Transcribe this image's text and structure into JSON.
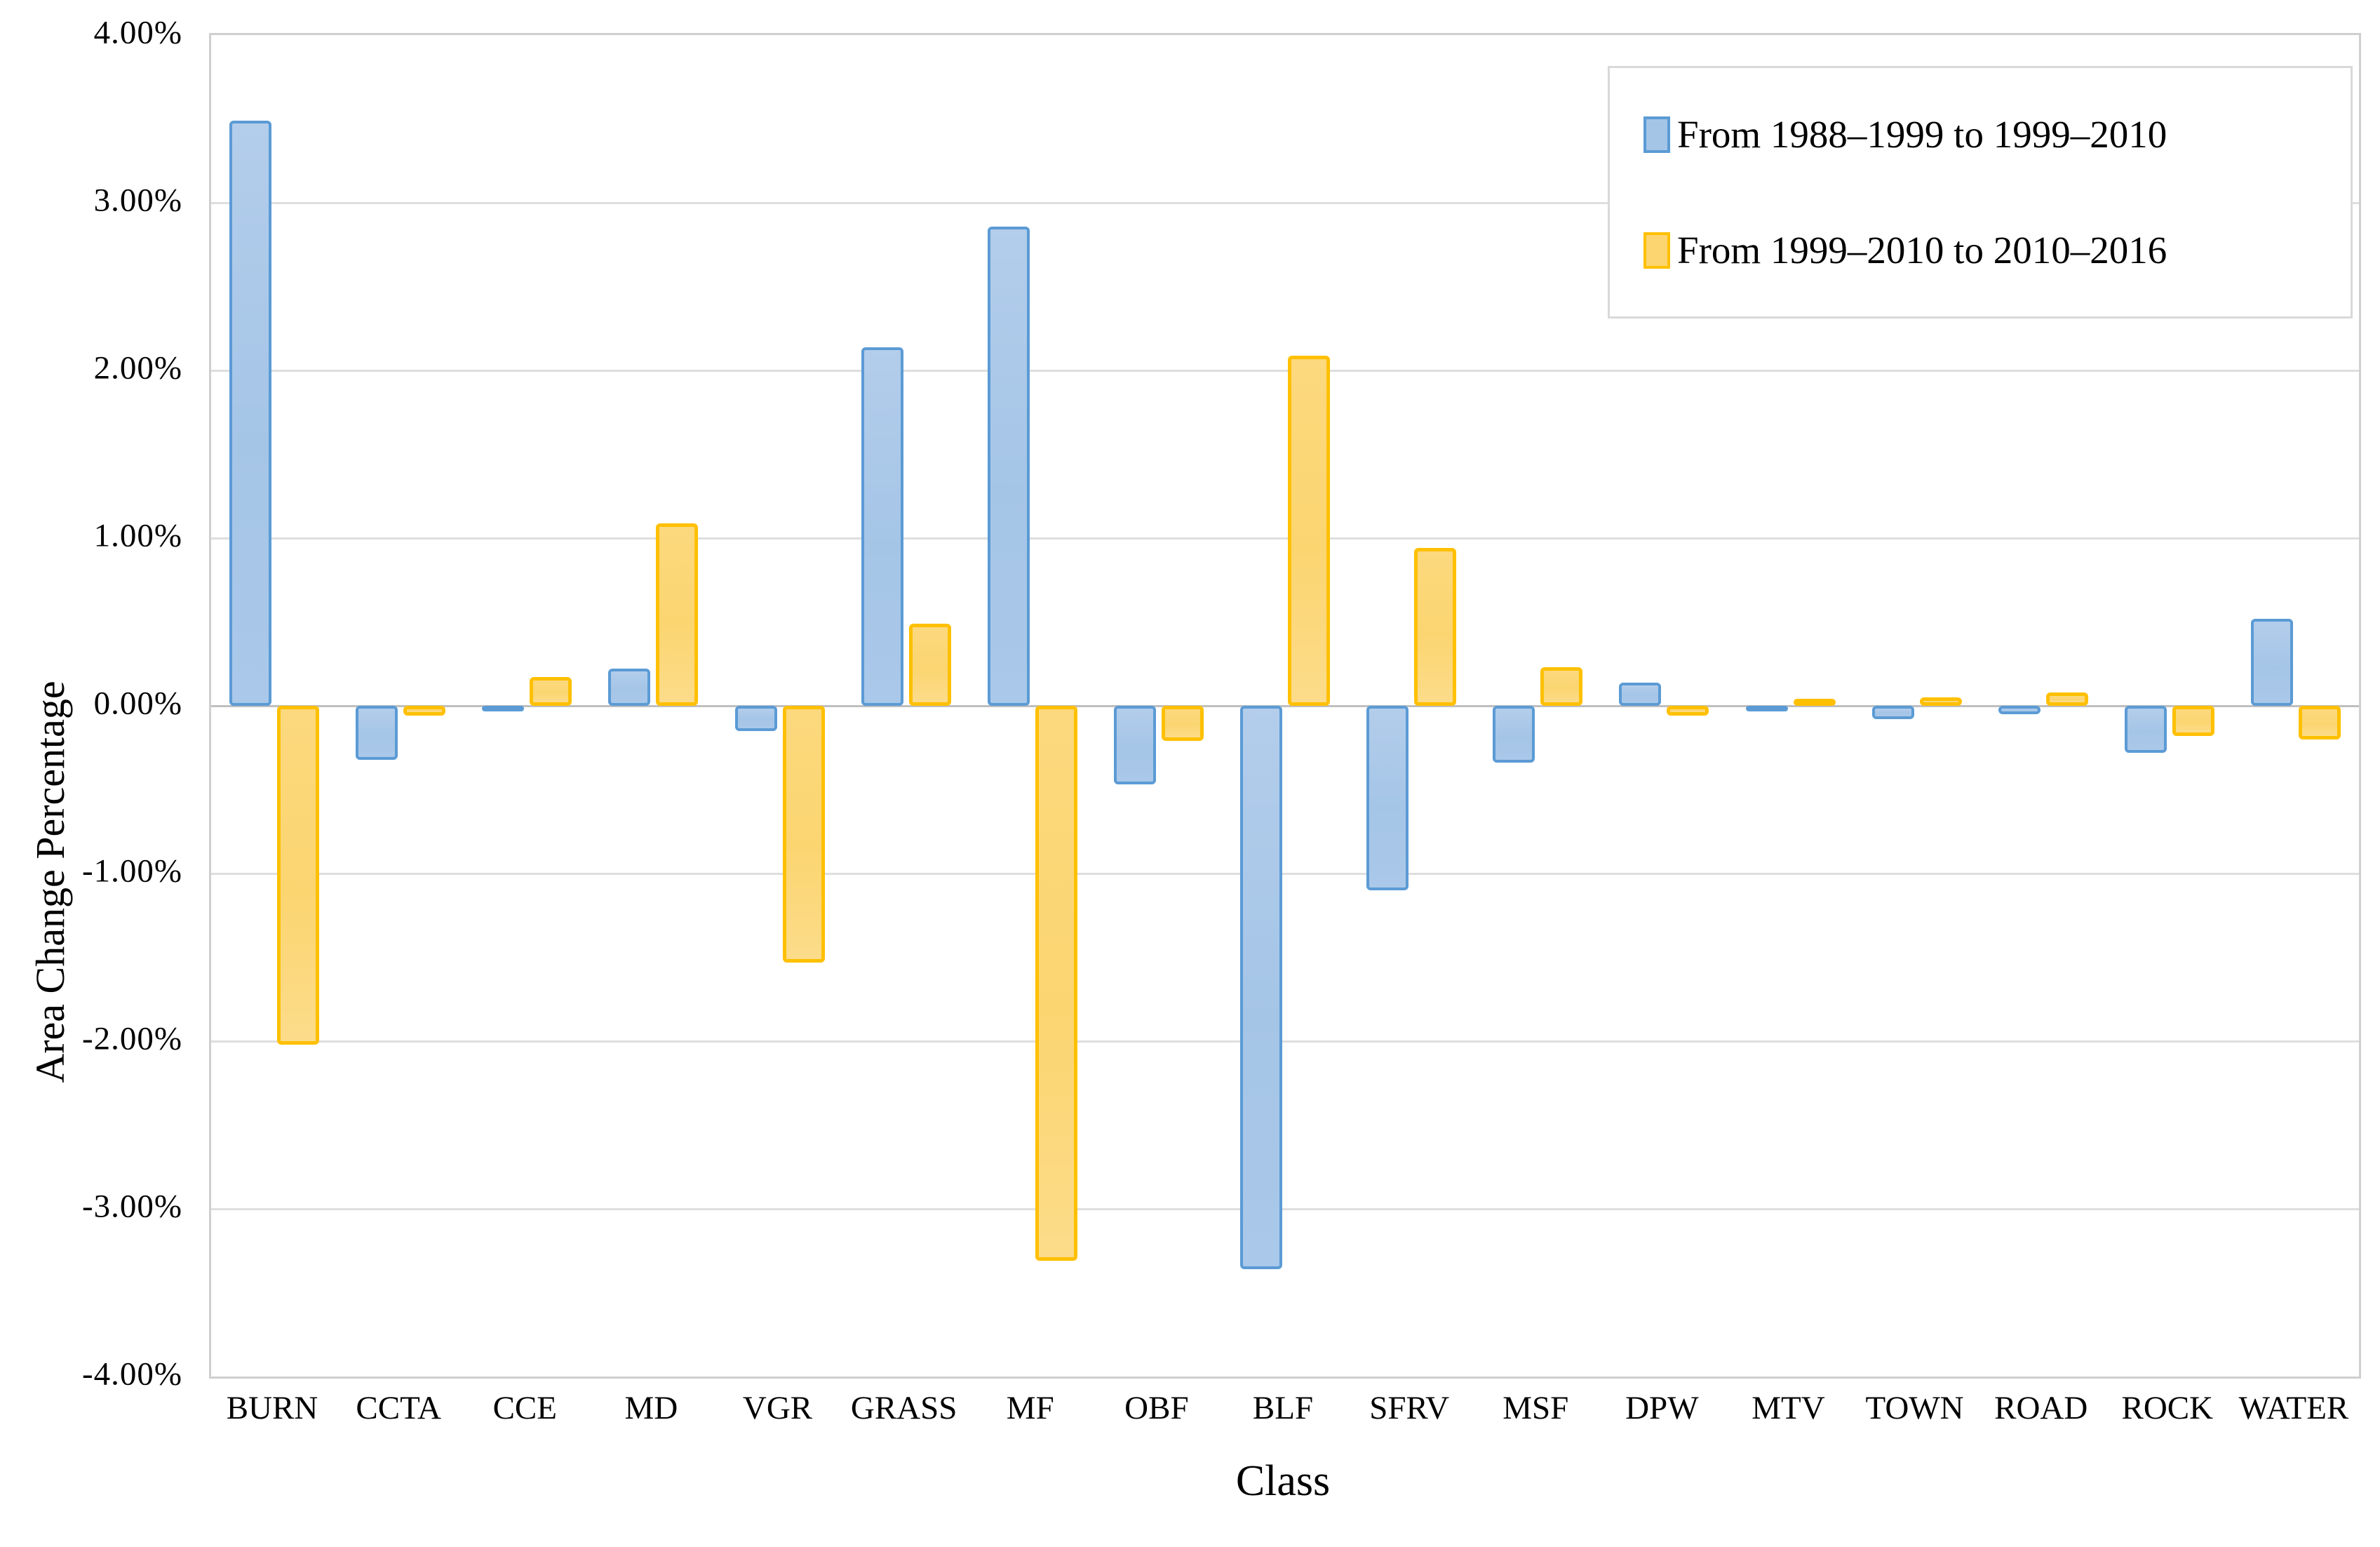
{
  "axes": {
    "y_tick_labels": [
      "4.00%",
      "3.00%",
      "2.00%",
      "1.00%",
      "0.00%",
      "-1.00%",
      "-2.00%",
      "-3.00%",
      "-4.00%"
    ],
    "y_tick_values": [
      4,
      3,
      2,
      1,
      0,
      -1,
      -2,
      -3,
      -4
    ]
  },
  "legend": {
    "entries": [
      {
        "label": "From 1988–1999 to 1999–2010",
        "swatch_fill": "#A5C5E7",
        "swatch_border": "#5B9BD5"
      },
      {
        "label": "From 1999–2010 to 2010–2016",
        "swatch_fill": "#FCD570",
        "swatch_border": "#FFC000"
      }
    ]
  },
  "chart_data": {
    "type": "bar",
    "title": "",
    "xlabel": "Class",
    "ylabel": "Area Change Percentage",
    "ylim": [
      -4,
      4
    ],
    "y_tick_step_percent": 1,
    "grid": "horizontal-only",
    "legend_position": "top-right-inside",
    "value_format": "percent",
    "categories": [
      "BURN",
      "CCTA",
      "CCE",
      "MD",
      "VGR",
      "GRASS",
      "MF",
      "OBF",
      "BLF",
      "SFRV",
      "MSF",
      "DPW",
      "MTV",
      "TOWN",
      "ROAD",
      "ROCK",
      "WATER"
    ],
    "series": [
      {
        "name": "From 1988–1999 to 1999–2010",
        "fill": "#A5C5E7",
        "border": "#5B9BD5",
        "values_percent": [
          3.49,
          -0.32,
          -0.02,
          0.22,
          -0.15,
          2.14,
          2.86,
          -0.47,
          -3.36,
          -1.1,
          -0.34,
          0.14,
          -0.02,
          -0.08,
          -0.05,
          -0.28,
          0.52
        ]
      },
      {
        "name": "From 1999–2010 to 2010–2016",
        "fill": "#FCD570",
        "border": "#FFC000",
        "values_percent": [
          -2.02,
          -0.06,
          0.17,
          1.09,
          -1.53,
          0.49,
          -3.31,
          -0.21,
          2.09,
          0.94,
          0.23,
          -0.06,
          0.04,
          0.05,
          0.08,
          -0.18,
          -0.2
        ]
      }
    ]
  },
  "colors": {
    "gridline": "#DEDEDE",
    "zero_line": "#BFBFBF",
    "plot_border": "#CFCFCF",
    "background": "#FFFFFF",
    "text": "#000000"
  }
}
